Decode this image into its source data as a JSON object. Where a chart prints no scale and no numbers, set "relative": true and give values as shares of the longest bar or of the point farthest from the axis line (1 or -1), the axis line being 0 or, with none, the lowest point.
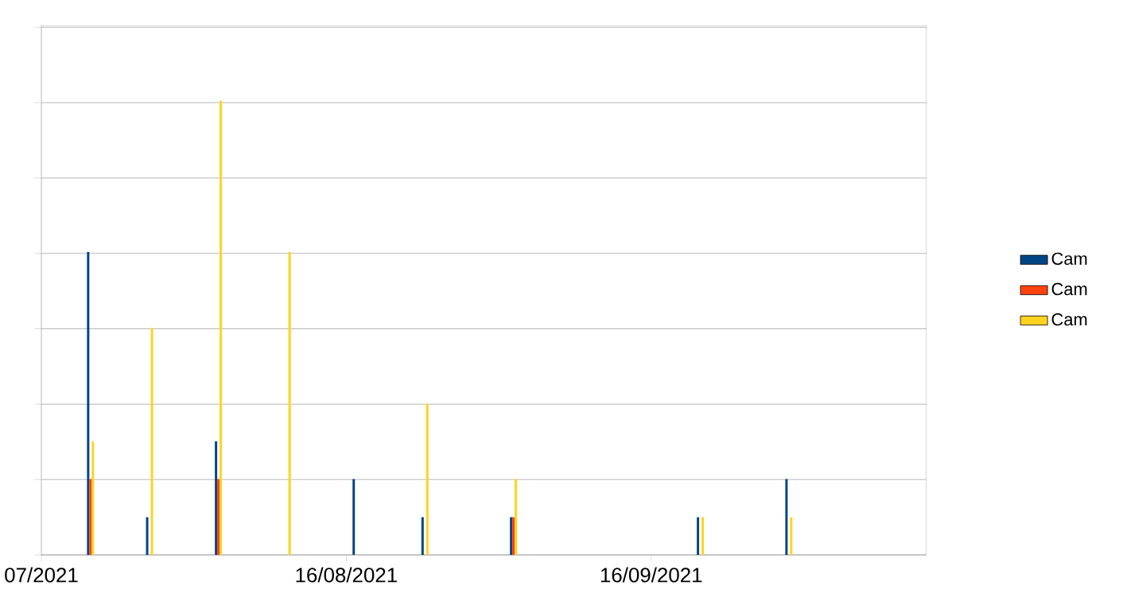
{
  "chart_data": {
    "type": "bar",
    "relative": true,
    "grid": "y",
    "legend": "right",
    "tick_labels": "x",
    "x": [
      "2021-07-21",
      "2021-07-27",
      "2021-08-03",
      "2021-08-10",
      "2021-08-17",
      "2021-08-24",
      "2021-09-02",
      "2021-09-21",
      "2021-09-30"
    ],
    "xlim": [
      "2021-07-16",
      "2021-10-14"
    ],
    "xticks": [
      {
        "value": "2021-07-16",
        "label": "07/2021"
      },
      {
        "value": "2021-08-16",
        "label": "16/08/2021"
      },
      {
        "value": "2021-09-16",
        "label": "16/09/2021"
      }
    ],
    "series": [
      {
        "name": "Cam",
        "color": "#004586",
        "values": [
          0.667,
          0.083,
          0.25,
          0,
          0.167,
          0.083,
          0.083,
          0.083,
          0.167
        ]
      },
      {
        "name": "Cam",
        "color": "#ff420e",
        "values": [
          0.167,
          0,
          0.167,
          0,
          0,
          0,
          0.083,
          0,
          0
        ]
      },
      {
        "name": "Cam",
        "color": "#ffd320",
        "values": [
          0.25,
          0.5,
          1,
          0.667,
          0,
          0.333,
          0.167,
          0.083,
          0.083
        ]
      }
    ]
  }
}
